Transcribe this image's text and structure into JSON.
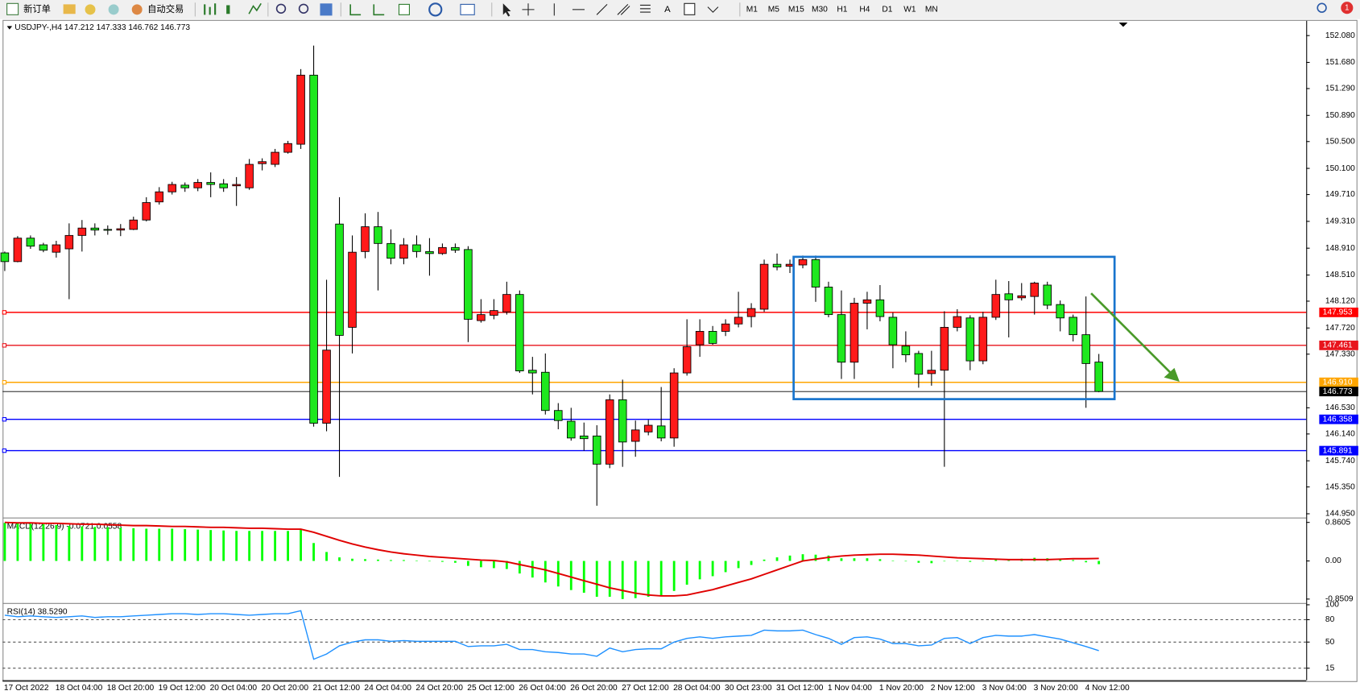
{
  "toolbar": {
    "new_order": "新订单",
    "auto_trading": "自动交易",
    "text_tool": "A",
    "timeframes": [
      "M1",
      "M5",
      "M15",
      "M30",
      "H1",
      "H4",
      "D1",
      "W1",
      "MN"
    ],
    "notification_count": 1
  },
  "chart_data": [
    {
      "type": "candlestick",
      "title": "USDJPY-,H4  147.212 147.333 146.762 146.773",
      "categories": [
        "17 Oct 2022",
        null,
        null,
        null,
        "18 Oct 04:00",
        null,
        null,
        null,
        "18 Oct 20:00",
        null,
        null,
        null,
        "19 Oct 12:00",
        null,
        null,
        null,
        "20 Oct 04:00",
        null,
        null,
        null,
        "20 Oct 20:00",
        null,
        null,
        null,
        "21 Oct 12:00",
        null,
        null,
        null,
        "24 Oct 04:00",
        null,
        null,
        null,
        "24 Oct 20:00",
        null,
        null,
        null,
        "25 Oct 12:00",
        null,
        null,
        null,
        "26 Oct 04:00",
        null,
        null,
        null,
        "26 Oct 20:00",
        null,
        null,
        null,
        "27 Oct 12:00",
        null,
        null,
        null,
        "28 Oct 04:00",
        null,
        null,
        null,
        "30 Oct 23:00",
        null,
        null,
        null,
        "31 Oct 12:00",
        null,
        null,
        null,
        "1 Nov 04:00",
        null,
        null,
        null,
        "1 Nov 20:00",
        null,
        null,
        null,
        "2 Nov 12:00",
        null,
        null,
        null,
        "3 Nov 04:00",
        null,
        null,
        null,
        "3 Nov 20:00",
        null,
        null,
        null,
        "4 Nov 12:00",
        null
      ],
      "open": [
        148.84,
        148.71,
        149.06,
        148.96,
        148.85,
        148.9,
        149.1,
        149.21,
        149.19,
        149.18,
        149.19,
        149.33,
        149.6,
        149.75,
        149.85,
        149.81,
        149.89,
        149.87,
        149.84,
        149.81,
        150.17,
        150.16,
        150.34,
        150.46,
        151.49,
        146.3,
        149.27,
        147.73,
        148.86,
        149.23,
        148.98,
        148.76,
        148.96,
        148.86,
        148.83,
        148.92,
        148.89,
        147.83,
        147.91,
        147.96,
        148.22,
        147.09,
        147.06,
        146.49,
        146.33,
        146.11,
        146.11,
        145.69,
        146.65,
        146.03,
        146.17,
        146.26,
        146.08,
        147.05,
        147.47,
        147.67,
        147.67,
        147.78,
        147.89,
        148.0,
        148.67,
        148.64,
        148.66,
        148.74,
        148.33,
        147.92,
        147.21,
        148.09,
        148.14,
        147.88,
        147.45,
        147.34,
        147.04,
        147.09,
        147.73,
        147.87,
        147.23,
        147.88,
        148.23,
        148.17,
        148.19,
        148.36,
        148.07,
        147.88,
        147.62,
        147.212
      ],
      "high": [
        148.86,
        149.09,
        149.1,
        148.99,
        149.02,
        149.28,
        149.33,
        149.28,
        149.25,
        149.27,
        149.38,
        149.67,
        149.82,
        149.9,
        149.89,
        149.94,
        150.04,
        149.94,
        149.97,
        150.24,
        150.25,
        150.39,
        150.51,
        151.58,
        151.93,
        148.44,
        149.67,
        149.1,
        149.43,
        149.45,
        149.19,
        149.06,
        149.1,
        149.06,
        148.98,
        148.98,
        148.94,
        148.15,
        148.15,
        148.41,
        148.28,
        147.29,
        147.34,
        146.6,
        146.53,
        146.31,
        146.27,
        146.73,
        146.95,
        146.34,
        146.35,
        146.84,
        147.12,
        147.85,
        147.85,
        147.75,
        147.85,
        148.26,
        148.09,
        148.74,
        148.83,
        148.74,
        148.8,
        148.8,
        148.41,
        148.28,
        148.17,
        148.26,
        148.36,
        147.95,
        147.67,
        147.38,
        147.38,
        147.97,
        148.0,
        147.91,
        147.96,
        148.44,
        148.42,
        148.39,
        148.41,
        148.41,
        148.13,
        147.92,
        148.19,
        147.333
      ],
      "low": [
        148.57,
        148.7,
        148.9,
        148.85,
        148.77,
        148.15,
        148.86,
        149.1,
        149.11,
        149.09,
        149.18,
        149.31,
        149.56,
        149.71,
        149.75,
        149.76,
        149.67,
        149.75,
        149.54,
        149.78,
        150.07,
        150.12,
        150.32,
        150.39,
        146.25,
        146.18,
        145.5,
        147.34,
        148.76,
        148.28,
        148.67,
        148.67,
        148.77,
        148.5,
        148.81,
        148.84,
        147.51,
        147.8,
        147.85,
        147.92,
        147.05,
        146.73,
        146.43,
        146.21,
        146.04,
        145.89,
        145.07,
        145.63,
        145.65,
        145.8,
        146.12,
        146.03,
        145.95,
        147.01,
        147.29,
        147.47,
        147.6,
        147.73,
        147.73,
        147.96,
        148.58,
        148.54,
        148.61,
        148.11,
        147.88,
        146.96,
        146.96,
        147.7,
        147.82,
        147.12,
        147.21,
        146.83,
        146.86,
        145.65,
        147.67,
        147.09,
        147.18,
        147.84,
        147.58,
        148.13,
        147.92,
        148.0,
        147.67,
        147.52,
        146.53,
        146.762
      ],
      "close": [
        148.71,
        149.06,
        148.94,
        148.88,
        148.96,
        149.1,
        149.21,
        149.18,
        149.18,
        149.2,
        149.33,
        149.59,
        149.75,
        149.86,
        149.81,
        149.89,
        149.86,
        149.81,
        149.86,
        150.16,
        150.2,
        150.34,
        150.47,
        151.49,
        146.3,
        147.39,
        147.61,
        148.85,
        149.23,
        148.98,
        148.76,
        148.96,
        148.86,
        148.83,
        148.92,
        148.88,
        147.85,
        147.92,
        147.98,
        148.22,
        147.08,
        147.05,
        146.49,
        146.34,
        146.08,
        146.07,
        145.69,
        146.65,
        146.02,
        146.2,
        146.27,
        146.08,
        147.05,
        147.44,
        147.67,
        147.49,
        147.78,
        147.88,
        148.01,
        148.67,
        148.63,
        148.67,
        148.74,
        148.33,
        147.92,
        147.21,
        148.09,
        148.14,
        147.89,
        147.47,
        147.32,
        147.03,
        147.09,
        147.73,
        147.89,
        147.23,
        147.88,
        148.22,
        148.14,
        148.2,
        148.39,
        148.06,
        147.87,
        147.62,
        147.19,
        146.773
      ],
      "bull_color": "#ff1a1a",
      "bear_color": "#1ee81e",
      "ylim": [
        144.9,
        152.3
      ],
      "yticks": [
        {
          "value": 152.08,
          "label": "152.080"
        },
        {
          "value": 151.68,
          "label": "151.680"
        },
        {
          "value": 151.29,
          "label": "151.290"
        },
        {
          "value": 150.89,
          "label": "150.890"
        },
        {
          "value": 150.5,
          "label": "150.500"
        },
        {
          "value": 150.1,
          "label": "150.100"
        },
        {
          "value": 149.71,
          "label": "149.710"
        },
        {
          "value": 149.31,
          "label": "149.310"
        },
        {
          "value": 148.91,
          "label": "148.910"
        },
        {
          "value": 148.51,
          "label": "148.510"
        },
        {
          "value": 148.12,
          "label": "148.120"
        },
        {
          "value": 147.72,
          "label": "147.720"
        },
        {
          "value": 147.33,
          "label": "147.330"
        },
        {
          "value": 146.53,
          "label": "146.530"
        },
        {
          "value": 146.14,
          "label": "146.140"
        },
        {
          "value": 145.74,
          "label": "145.740"
        },
        {
          "value": 145.35,
          "label": "145.350"
        },
        {
          "value": 144.95,
          "label": "144.950"
        }
      ],
      "hlines": [
        {
          "value": 147.953,
          "color": "#ff0000"
        },
        {
          "value": 147.461,
          "color": "#e8141c"
        },
        {
          "value": {
            "value": 146.91,
            "label": "146.910"
          },
          "color": "#ffa500"
        },
        {
          "value": 146.358,
          "color": "#0000ff"
        },
        {
          "value": 145.891,
          "color": "#0000ff"
        }
      ]
    },
    {
      "type": "macd",
      "title": "MACD(12,26,9) -0.0721 0.0558",
      "series": [
        {
          "kind": "bar",
          "color": "#00ff00",
          "values": [
            0.85,
            0.84,
            0.83,
            0.82,
            0.8,
            0.78,
            0.77,
            0.76,
            0.75,
            0.74,
            0.73,
            0.72,
            0.72,
            0.72,
            0.71,
            0.7,
            0.69,
            0.68,
            0.67,
            0.67,
            0.67,
            0.67,
            0.67,
            0.7,
            0.4,
            0.2,
            0.08,
            0.05,
            0.04,
            0.03,
            0.02,
            0.02,
            0.01,
            0.0,
            -0.02,
            -0.04,
            -0.11,
            -0.14,
            -0.16,
            -0.18,
            -0.28,
            -0.37,
            -0.48,
            -0.57,
            -0.65,
            -0.71,
            -0.8,
            -0.8,
            -0.8509,
            -0.83,
            -0.8,
            -0.78,
            -0.67,
            -0.53,
            -0.41,
            -0.34,
            -0.25,
            -0.16,
            -0.09,
            0.03,
            0.08,
            0.12,
            0.15,
            0.14,
            0.12,
            0.06,
            0.06,
            0.06,
            0.04,
            0.01,
            -0.01,
            -0.04,
            -0.05,
            -0.01,
            0.01,
            -0.02,
            0.0,
            0.03,
            0.04,
            0.05,
            0.07,
            0.06,
            0.04,
            0.02,
            -0.03,
            -0.0721
          ]
        },
        {
          "kind": "line",
          "color": "#e00000",
          "values": [
            0.86,
            0.85,
            0.85,
            0.84,
            0.84,
            0.83,
            0.82,
            0.82,
            0.81,
            0.8,
            0.79,
            0.79,
            0.78,
            0.77,
            0.77,
            0.76,
            0.75,
            0.75,
            0.74,
            0.73,
            0.73,
            0.72,
            0.71,
            0.71,
            0.64,
            0.55,
            0.46,
            0.38,
            0.31,
            0.25,
            0.2,
            0.16,
            0.13,
            0.1,
            0.08,
            0.06,
            0.04,
            0.02,
            0.01,
            -0.02,
            -0.08,
            -0.14,
            -0.2,
            -0.28,
            -0.36,
            -0.44,
            -0.52,
            -0.6,
            -0.66,
            -0.72,
            -0.76,
            -0.78,
            -0.78,
            -0.76,
            -0.7,
            -0.64,
            -0.56,
            -0.48,
            -0.4,
            -0.3,
            -0.2,
            -0.1,
            0,
            0.04,
            0.08,
            0.11,
            0.13,
            0.14,
            0.15,
            0.15,
            0.14,
            0.13,
            0.11,
            0.09,
            0.07,
            0.06,
            0.05,
            0.04,
            0.03,
            0.03,
            0.03,
            0.03,
            0.04,
            0.05,
            0.05,
            0.0558
          ]
        }
      ],
      "ylim": [
        -0.92,
        0.92
      ],
      "yticks": [
        0.8605,
        {
          "value": 0,
          "label": "0.00"
        },
        -0.8509
      ]
    },
    {
      "type": "line",
      "title": "RSI(14) 38.5290",
      "series": [
        {
          "color": "#1e90ff",
          "values": [
            86,
            84,
            85,
            84,
            83,
            84,
            85,
            83,
            84,
            84,
            85,
            86,
            87,
            88,
            88,
            87,
            88,
            88,
            87,
            86,
            87,
            88,
            88,
            92,
            27,
            34,
            45,
            50,
            53,
            53,
            51,
            52,
            51,
            51,
            51,
            51,
            44,
            45,
            45,
            47,
            40,
            40,
            37,
            36,
            34,
            34,
            31,
            42,
            37,
            40,
            41,
            41,
            50,
            55,
            57,
            55,
            57,
            58,
            59,
            66,
            65,
            65,
            66,
            60,
            55,
            47,
            56,
            57,
            54,
            48,
            48,
            45,
            46,
            55,
            56,
            48,
            56,
            59,
            58,
            58,
            60,
            57,
            54,
            49,
            44,
            38.529
          ]
        }
      ],
      "ylim": [
        0,
        100
      ],
      "yticks": [
        100,
        80,
        50,
        15
      ],
      "grid": true
    }
  ]
}
